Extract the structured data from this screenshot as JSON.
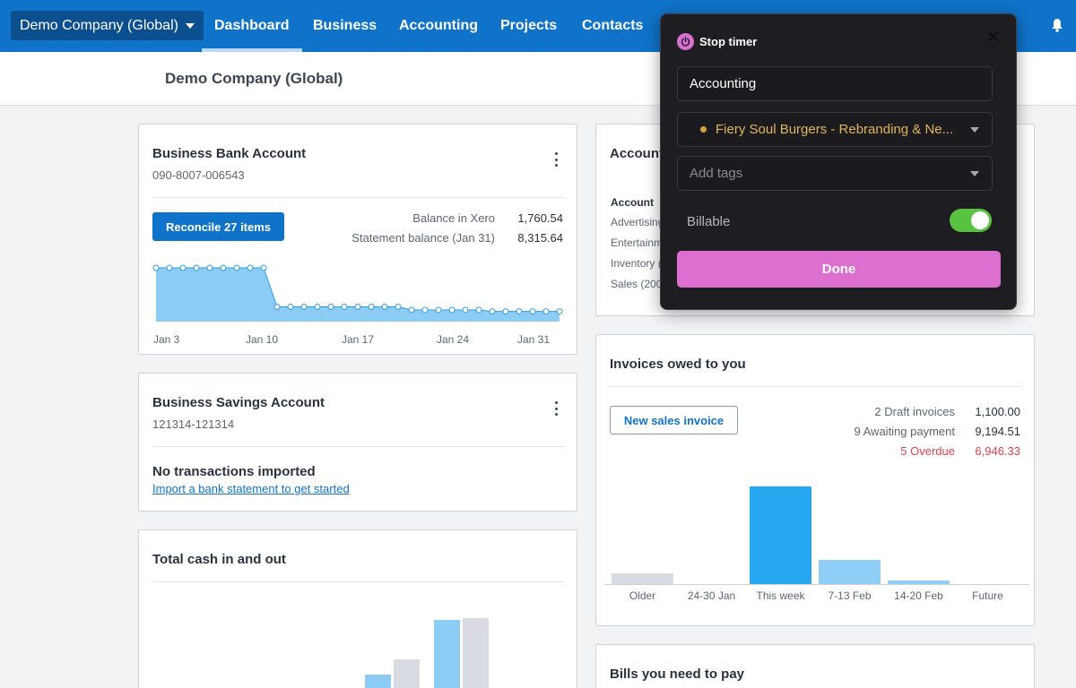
{
  "nav": {
    "org": "Demo Company (Global)",
    "tabs": [
      "Dashboard",
      "Business",
      "Accounting",
      "Projects",
      "Contacts"
    ]
  },
  "subheader": {
    "title": "Demo Company (Global)"
  },
  "bank": {
    "title": "Business Bank Account",
    "number": "090-8007-006543",
    "reconcile": "Reconcile 27 items",
    "balance_xero_label": "Balance in Xero",
    "balance_xero_value": "1,760.54",
    "statement_label": "Statement balance (Jan 31)",
    "statement_value": "8,315.64",
    "x_labels": [
      "Jan 3",
      "Jan 10",
      "Jan 17",
      "Jan 24",
      "Jan 31"
    ],
    "series": [
      8315.64,
      8315.64,
      8315.64,
      8315.64,
      8315.64,
      8315.64,
      8315.64,
      8315.64,
      8315.64,
      2450,
      2450,
      2450,
      2450,
      2450,
      2450,
      2450,
      2450,
      2450,
      2450,
      1980,
      1980,
      1980,
      1980,
      1980,
      1980,
      1760.54,
      1760.54,
      1760.54,
      1760.54,
      1760.54,
      1760.54
    ]
  },
  "savings": {
    "title": "Business Savings Account",
    "number": "121314-121314",
    "empty_title": "No transactions imported",
    "import_link": "Import a bank statement to get started"
  },
  "cash": {
    "title": "Total cash in and out",
    "bars": [
      {
        "in": 0.28,
        "out": 0.45
      },
      {
        "in": 0.88,
        "out": 0.9
      }
    ]
  },
  "accounts": {
    "title": "Account",
    "header": "Account",
    "rows": [
      "Advertising",
      "Entertainm",
      "Inventory (",
      "Sales (200"
    ]
  },
  "invoices": {
    "title": "Invoices owed to you",
    "new_btn": "New sales invoice",
    "stats": [
      {
        "label": "2 Draft invoices",
        "value": "1,100.00",
        "overdue": false
      },
      {
        "label": "9 Awaiting payment",
        "value": "9,194.51",
        "overdue": false
      },
      {
        "label": "5 Overdue",
        "value": "6,946.33",
        "overdue": true
      }
    ],
    "chart_data": {
      "type": "bar",
      "categories": [
        "Older",
        "24-30 Jan",
        "This week",
        "7-13 Feb",
        "14-20 Feb",
        "Future"
      ],
      "values": [
        11,
        0,
        100,
        25,
        4,
        0
      ],
      "colors": [
        "#d8dbe2",
        "#d8dbe2",
        "#26a7f0",
        "#8fcff7",
        "#8fcff7",
        "#8fcff7"
      ]
    }
  },
  "bills": {
    "title": "Bills you need to pay"
  },
  "timer": {
    "header": "Stop timer",
    "description": "Accounting",
    "project": "Fiery Soul Burgers - Rebranding & Ne...",
    "tags_placeholder": "Add tags",
    "billable_label": "Billable",
    "billable_on": true,
    "done": "Done"
  },
  "colors": {
    "brand": "#0f73c9",
    "timer_accent": "#dc6fcf",
    "toggle_on": "#5ac241",
    "project_dot": "#d4a23a"
  }
}
